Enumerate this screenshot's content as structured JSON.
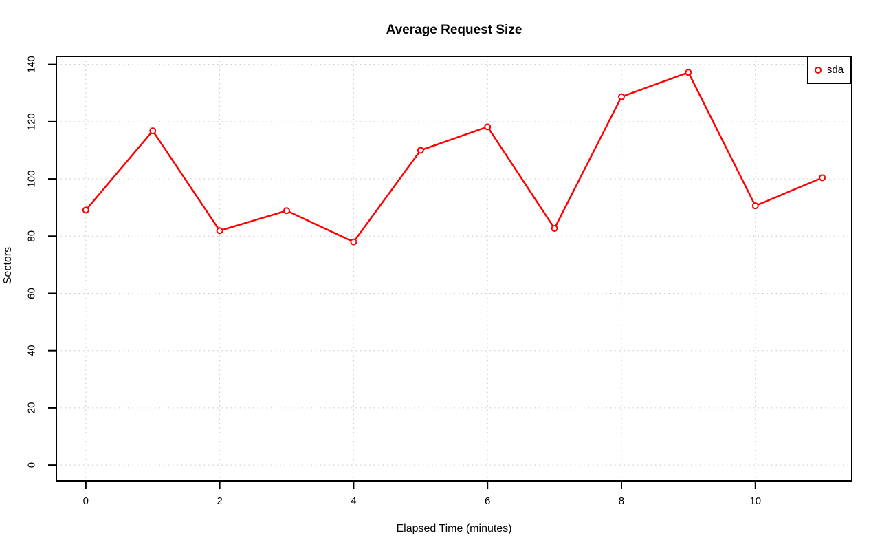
{
  "chart_data": {
    "type": "line",
    "title": "Average Request Size",
    "xlabel": "Elapsed Time (minutes)",
    "ylabel": "Sectors",
    "x_ticks": [
      0,
      2,
      4,
      6,
      8,
      10
    ],
    "y_ticks": [
      0,
      20,
      40,
      60,
      80,
      100,
      120,
      140
    ],
    "xlim": [
      -0.44,
      11.44
    ],
    "ylim": [
      -5.5,
      142.8
    ],
    "grid": true,
    "legend": {
      "position": "top-right"
    },
    "colors": {
      "series": "#ff0000",
      "grid": "#c7c7c7",
      "axis": "#000000",
      "background": "#ffffff",
      "text": "#000000"
    },
    "series": [
      {
        "name": "sda",
        "marker": "open-circle",
        "x": [
          0,
          1,
          2,
          3,
          4,
          5,
          6,
          7,
          8,
          9,
          10,
          11
        ],
        "values": [
          89.1,
          116.8,
          81.9,
          88.9,
          78.0,
          110.0,
          118.2,
          82.7,
          128.7,
          137.2,
          90.6,
          100.4
        ]
      }
    ]
  }
}
